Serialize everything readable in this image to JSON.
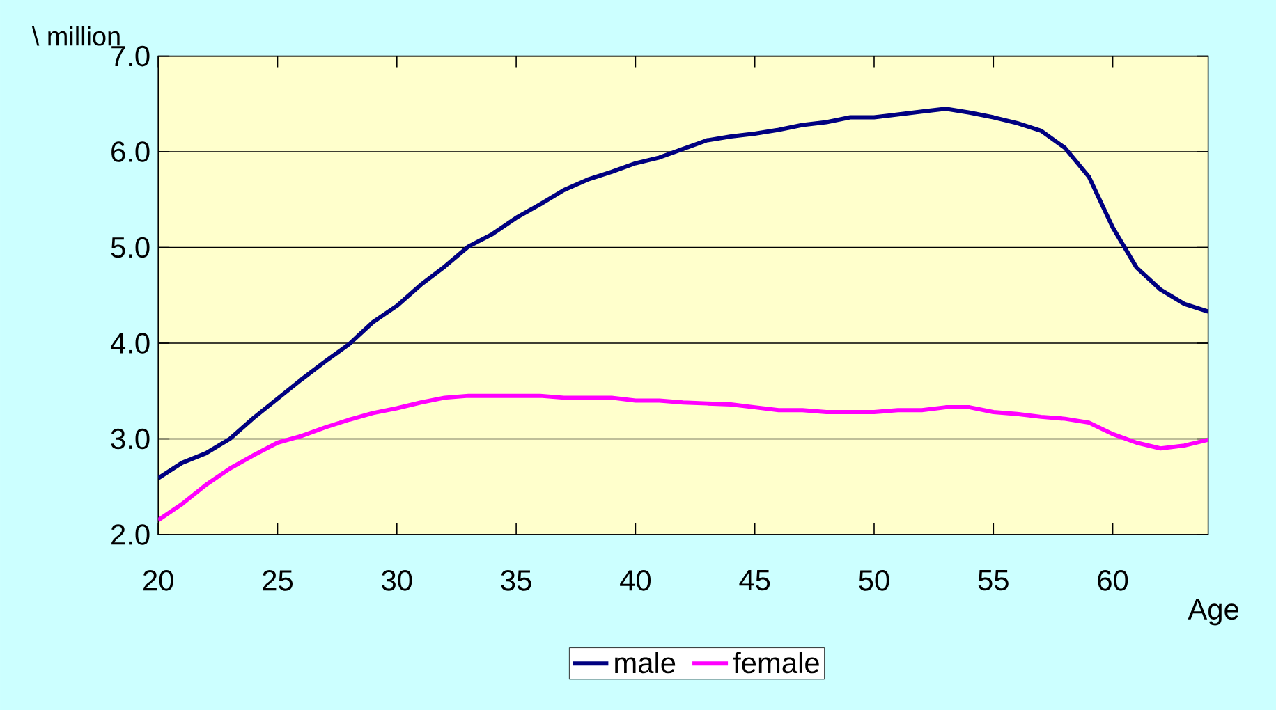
{
  "chart_data": {
    "type": "line",
    "ylabel": "\\ million",
    "xlabel": "Age",
    "x": [
      20,
      21,
      22,
      23,
      24,
      25,
      26,
      27,
      28,
      29,
      30,
      31,
      32,
      33,
      34,
      35,
      36,
      37,
      38,
      39,
      40,
      41,
      42,
      43,
      44,
      45,
      46,
      47,
      48,
      49,
      50,
      51,
      52,
      53,
      54,
      55,
      56,
      57,
      58,
      59,
      60,
      61,
      62,
      63,
      64
    ],
    "series": [
      {
        "name": "male",
        "color": "#000080",
        "values": [
          2.59,
          2.75,
          2.85,
          3.0,
          3.22,
          3.42,
          3.62,
          3.81,
          3.99,
          4.22,
          4.39,
          4.61,
          4.8,
          5.01,
          5.14,
          5.31,
          5.45,
          5.6,
          5.71,
          5.79,
          5.88,
          5.94,
          6.03,
          6.12,
          6.16,
          6.19,
          6.23,
          6.28,
          6.31,
          6.36,
          6.36,
          6.39,
          6.42,
          6.45,
          6.41,
          6.36,
          6.3,
          6.22,
          6.04,
          5.74,
          5.21,
          4.79,
          4.56,
          4.41,
          4.33
        ]
      },
      {
        "name": "female",
        "color": "#ff00ff",
        "values": [
          2.15,
          2.32,
          2.52,
          2.69,
          2.83,
          2.96,
          3.03,
          3.12,
          3.2,
          3.27,
          3.32,
          3.38,
          3.43,
          3.45,
          3.45,
          3.45,
          3.45,
          3.43,
          3.43,
          3.43,
          3.4,
          3.4,
          3.38,
          3.37,
          3.36,
          3.33,
          3.3,
          3.3,
          3.28,
          3.28,
          3.28,
          3.3,
          3.3,
          3.33,
          3.33,
          3.28,
          3.26,
          3.23,
          3.21,
          3.17,
          3.05,
          2.96,
          2.9,
          2.93,
          2.99
        ]
      }
    ],
    "xlim": [
      20,
      64
    ],
    "xticks": [
      20,
      25,
      30,
      35,
      40,
      45,
      50,
      55,
      60
    ],
    "ylim": [
      2,
      7
    ],
    "yticks": [
      {
        "value": 2,
        "label": "2.0"
      },
      {
        "value": 3,
        "label": "3.0"
      },
      {
        "value": 4,
        "label": "4.0"
      },
      {
        "value": 5,
        "label": "5.0"
      },
      {
        "value": 6,
        "label": "6.0"
      },
      {
        "value": 7,
        "label": "7.0"
      }
    ],
    "grid": "y",
    "legend": "bottom",
    "line_style": "solid",
    "marker": "none"
  }
}
